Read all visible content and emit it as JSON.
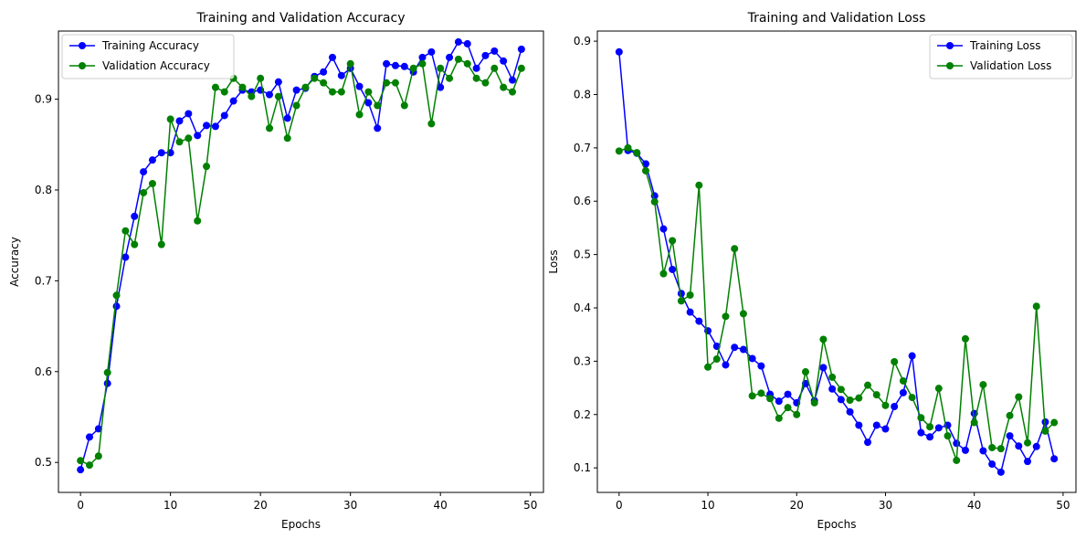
{
  "chart_data": [
    {
      "type": "line",
      "title": "Training and Validation Accuracy",
      "xlabel": "Epochs",
      "ylabel": "Accuracy",
      "xlim": [
        -2.45,
        51.45
      ],
      "ylim": [
        0.467,
        0.975
      ],
      "xticks": [
        0,
        10,
        20,
        30,
        40,
        50
      ],
      "yticks": [
        0.5,
        0.6,
        0.7,
        0.8,
        0.9
      ],
      "xtick_labels": [
        "0",
        "10",
        "20",
        "30",
        "40",
        "50"
      ],
      "ytick_labels": [
        "0.5",
        "0.6",
        "0.7",
        "0.8",
        "0.9"
      ],
      "grid": false,
      "legend": "upper-left",
      "x": [
        0,
        1,
        2,
        3,
        4,
        5,
        6,
        7,
        8,
        9,
        10,
        11,
        12,
        13,
        14,
        15,
        16,
        17,
        18,
        19,
        20,
        21,
        22,
        23,
        24,
        25,
        26,
        27,
        28,
        29,
        30,
        31,
        32,
        33,
        34,
        35,
        36,
        37,
        38,
        39,
        40,
        41,
        42,
        43,
        44,
        45,
        46,
        47,
        48,
        49
      ],
      "series": [
        {
          "name": "Training Accuracy",
          "color": "#0000ff",
          "marker": "circle",
          "values": [
            0.492,
            0.528,
            0.537,
            0.587,
            0.672,
            0.726,
            0.771,
            0.82,
            0.833,
            0.841,
            0.841,
            0.876,
            0.884,
            0.86,
            0.871,
            0.87,
            0.882,
            0.898,
            0.91,
            0.908,
            0.91,
            0.905,
            0.919,
            0.879,
            0.91,
            0.912,
            0.925,
            0.93,
            0.946,
            0.926,
            0.934,
            0.914,
            0.896,
            0.868,
            0.939,
            0.937,
            0.936,
            0.93,
            0.946,
            0.952,
            0.913,
            0.946,
            0.963,
            0.961,
            0.934,
            0.948,
            0.953,
            0.942,
            0.921,
            0.955
          ]
        },
        {
          "name": "Validation Accuracy",
          "color": "#008000",
          "marker": "circle",
          "values": [
            0.502,
            0.497,
            0.507,
            0.599,
            0.684,
            0.755,
            0.74,
            0.797,
            0.807,
            0.74,
            0.878,
            0.853,
            0.857,
            0.766,
            0.826,
            0.913,
            0.908,
            0.923,
            0.913,
            0.903,
            0.923,
            0.868,
            0.903,
            0.857,
            0.893,
            0.913,
            0.923,
            0.918,
            0.908,
            0.908,
            0.939,
            0.883,
            0.908,
            0.893,
            0.918,
            0.918,
            0.893,
            0.934,
            0.939,
            0.873,
            0.934,
            0.923,
            0.944,
            0.939,
            0.923,
            0.918,
            0.934,
            0.913,
            0.908,
            0.934
          ]
        }
      ]
    },
    {
      "type": "line",
      "title": "Training and Validation Loss",
      "xlabel": "Epochs",
      "ylabel": "Loss",
      "xlim": [
        -2.45,
        51.45
      ],
      "ylim": [
        0.054,
        0.919
      ],
      "xticks": [
        0,
        10,
        20,
        30,
        40,
        50
      ],
      "yticks": [
        0.1,
        0.2,
        0.3,
        0.4,
        0.5,
        0.6,
        0.7,
        0.8,
        0.9
      ],
      "xtick_labels": [
        "0",
        "10",
        "20",
        "30",
        "40",
        "50"
      ],
      "ytick_labels": [
        "0.1",
        "0.2",
        "0.3",
        "0.4",
        "0.5",
        "0.6",
        "0.7",
        "0.8",
        "0.9"
      ],
      "grid": false,
      "legend": "upper-right",
      "x": [
        0,
        1,
        2,
        3,
        4,
        5,
        6,
        7,
        8,
        9,
        10,
        11,
        12,
        13,
        14,
        15,
        16,
        17,
        18,
        19,
        20,
        21,
        22,
        23,
        24,
        25,
        26,
        27,
        28,
        29,
        30,
        31,
        32,
        33,
        34,
        35,
        36,
        37,
        38,
        39,
        40,
        41,
        42,
        43,
        44,
        45,
        46,
        47,
        48,
        49
      ],
      "series": [
        {
          "name": "Training Loss",
          "color": "#0000ff",
          "marker": "circle",
          "values": [
            0.88,
            0.695,
            0.69,
            0.67,
            0.61,
            0.548,
            0.472,
            0.427,
            0.392,
            0.375,
            0.357,
            0.328,
            0.293,
            0.326,
            0.322,
            0.305,
            0.291,
            0.238,
            0.225,
            0.238,
            0.222,
            0.258,
            0.226,
            0.288,
            0.248,
            0.228,
            0.205,
            0.18,
            0.148,
            0.18,
            0.173,
            0.215,
            0.241,
            0.31,
            0.166,
            0.158,
            0.175,
            0.18,
            0.146,
            0.133,
            0.202,
            0.132,
            0.107,
            0.092,
            0.16,
            0.141,
            0.112,
            0.14,
            0.186,
            0.117
          ]
        },
        {
          "name": "Validation Loss",
          "color": "#008000",
          "marker": "circle",
          "values": [
            0.694,
            0.7,
            0.691,
            0.657,
            0.599,
            0.464,
            0.526,
            0.413,
            0.424,
            0.63,
            0.289,
            0.304,
            0.384,
            0.511,
            0.389,
            0.235,
            0.24,
            0.23,
            0.193,
            0.213,
            0.2,
            0.28,
            0.222,
            0.341,
            0.27,
            0.247,
            0.227,
            0.231,
            0.255,
            0.237,
            0.217,
            0.299,
            0.263,
            0.232,
            0.194,
            0.177,
            0.249,
            0.16,
            0.114,
            0.342,
            0.185,
            0.256,
            0.138,
            0.136,
            0.198,
            0.233,
            0.147,
            0.403,
            0.169,
            0.185
          ]
        }
      ]
    }
  ]
}
